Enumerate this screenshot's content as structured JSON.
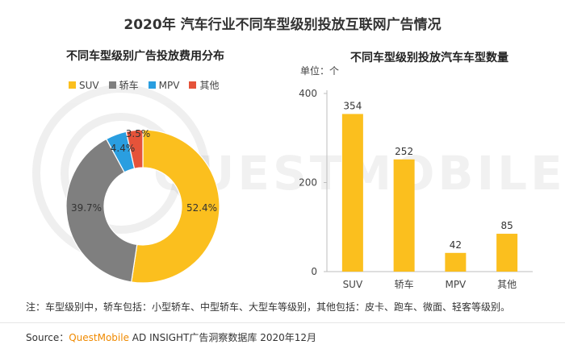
{
  "title": "2020年 汽车行业不同车型级别投放互联网广告情况",
  "note": "注：车型级别中，轿车包括：小型轿车、中型轿车、大型车等级别，其他包括：皮卡、跑车、微面、轻客等级别。",
  "source": {
    "prefix": "Source：",
    "brand": "QuestMobile",
    "rest": " AD INSIGHT广告洞察数据库 2020年12月"
  },
  "watermark_text": "QUESTMOBILE",
  "colors": {
    "suv": "#fbbf1e",
    "sedan": "#7f7f7f",
    "mpv": "#2a9ee0",
    "other": "#e5533a"
  },
  "chart_data": [
    {
      "type": "pie",
      "donut": true,
      "title": "不同车型级别广告投放费用分布",
      "legend_position": "top-left",
      "categories": [
        "SUV",
        "轿车",
        "MPV",
        "其他"
      ],
      "values": [
        52.4,
        39.7,
        4.4,
        3.5
      ],
      "labels": [
        "52.4%",
        "39.7%",
        "4.4%",
        "3.5%"
      ],
      "colors": [
        "#fbbf1e",
        "#7f7f7f",
        "#2a9ee0",
        "#e5533a"
      ]
    },
    {
      "type": "bar",
      "title": "不同车型级别投放汽车车型数量",
      "unit_label": "单位：个",
      "categories": [
        "SUV",
        "轿车",
        "MPV",
        "其他"
      ],
      "values": [
        354,
        252,
        42,
        85
      ],
      "ylim": [
        0,
        400
      ],
      "yticks": [
        0,
        200,
        400
      ],
      "color": "#fbbf1e",
      "grid": false
    }
  ]
}
